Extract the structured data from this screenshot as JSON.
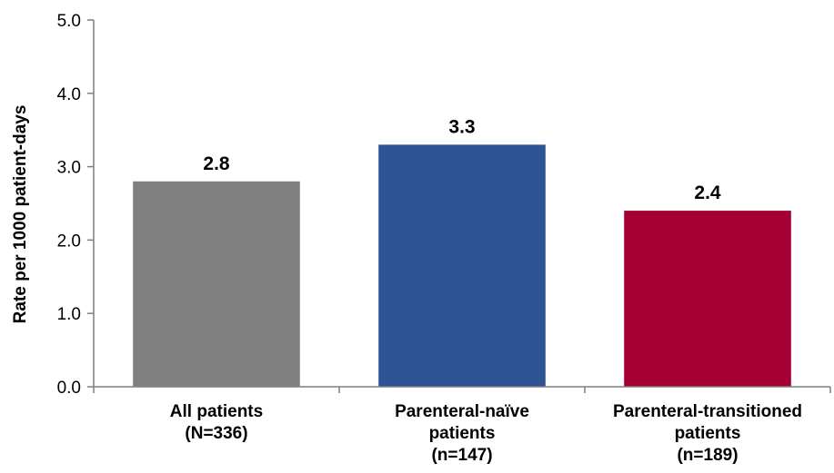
{
  "chart_data": {
    "type": "bar",
    "title": "",
    "xlabel": "",
    "ylabel": "Rate per 1000 patient-days",
    "ylim": [
      0,
      5
    ],
    "yticks": [
      "0.0",
      "1.0",
      "2.0",
      "3.0",
      "4.0",
      "5.0"
    ],
    "grid": false,
    "legend": "none",
    "categories": [
      [
        "All patients",
        "(N=336)"
      ],
      [
        "Parenteral-naïve",
        "patients",
        "(n=147)"
      ],
      [
        "Parenteral-transitioned",
        "patients",
        "(n=189)"
      ]
    ],
    "values": [
      2.8,
      3.3,
      2.4
    ],
    "data_labels": [
      "2.8",
      "3.3",
      "2.4"
    ],
    "colors": [
      "#808080",
      "#2E5395",
      "#A50034"
    ]
  }
}
